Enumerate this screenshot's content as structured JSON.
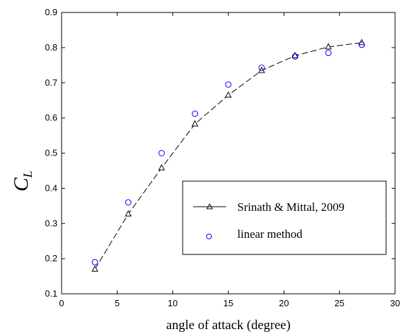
{
  "chart_data": {
    "type": "line",
    "xlabel": "angle of attack (degree)",
    "ylabel": "C",
    "ylabel_subscript": "L",
    "xlim": [
      0,
      30
    ],
    "ylim": [
      0.1,
      0.9
    ],
    "x_ticks": [
      "0",
      "5",
      "10",
      "15",
      "20",
      "25",
      "30"
    ],
    "y_ticks": [
      "0.1",
      "0.2",
      "0.3",
      "0.4",
      "0.5",
      "0.6",
      "0.7",
      "0.8",
      "0.9"
    ],
    "grid": false,
    "legend_position": "right",
    "series": [
      {
        "name": "Srinath & Mittal, 2009",
        "style": "dashed line with triangle markers",
        "color": "#000000",
        "x": [
          3,
          6,
          9,
          12,
          15,
          18,
          21,
          24,
          27
        ],
        "y": [
          0.17,
          0.327,
          0.458,
          0.583,
          0.665,
          0.735,
          0.777,
          0.802,
          0.814
        ]
      },
      {
        "name": "linear method",
        "style": "circle markers",
        "color": "#0000ff",
        "x": [
          3,
          6,
          9,
          12,
          15,
          18,
          21,
          24,
          27
        ],
        "y": [
          0.19,
          0.36,
          0.5,
          0.612,
          0.695,
          0.743,
          0.775,
          0.785,
          0.808
        ]
      }
    ]
  }
}
